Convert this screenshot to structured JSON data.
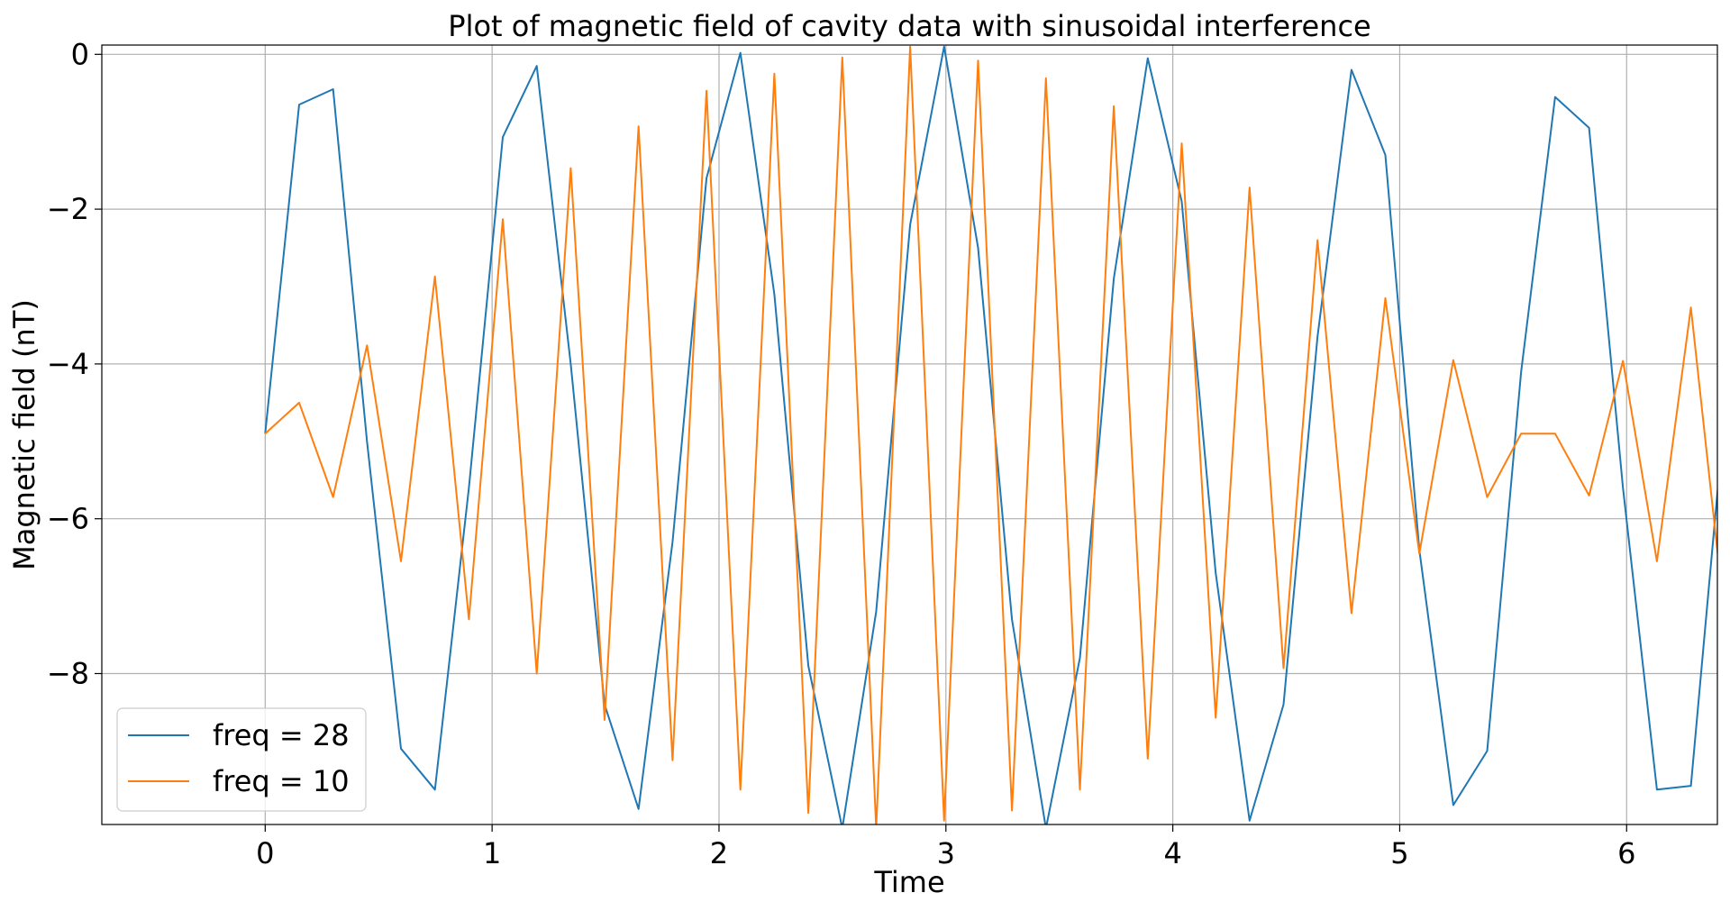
{
  "chart_data": {
    "type": "line",
    "title": "Plot of magnetic field of cavity data with sinusoidal interference",
    "xlabel": "Time",
    "ylabel": "Magnetic field (nT)",
    "xlim": [
      -0.72,
      6.4
    ],
    "ylim": [
      -9.95,
      0.12
    ],
    "grid": true,
    "legend_position": "lower-left",
    "xticks": [
      0,
      1,
      2,
      3,
      4,
      5,
      6
    ],
    "yticks": [
      0,
      -2,
      -4,
      -6,
      -8
    ],
    "xtick_labels": [
      "0",
      "1",
      "2",
      "3",
      "4",
      "5",
      "6"
    ],
    "ytick_labels": [
      "0",
      "−2",
      "−4",
      "−6",
      "−8"
    ],
    "x": [
      0.0,
      0.1496,
      0.2992,
      0.4488,
      0.5984,
      0.748,
      0.8976,
      1.0472,
      1.1968,
      1.3464,
      1.496,
      1.6456,
      1.7952,
      1.9448,
      2.0944,
      2.244,
      2.3936,
      2.5432,
      2.6928,
      2.8424,
      2.992,
      3.1416,
      3.2912,
      3.4408,
      3.5904,
      3.74,
      3.8896,
      4.0392,
      4.1888,
      4.3384,
      4.488,
      4.6376,
      4.7872,
      4.9368,
      5.0864,
      5.236,
      5.3856,
      5.5352,
      5.6848,
      5.8344,
      5.984,
      6.1336,
      6.2832,
      6.4328
    ],
    "series": [
      {
        "name": "freq = 28",
        "color": "#1f77b4",
        "values": [
          -4.9,
          -0.65,
          -0.45,
          -5.0,
          -8.97,
          -9.5,
          -5.6,
          -1.07,
          -0.15,
          -4.0,
          -8.4,
          -9.75,
          -6.3,
          -1.6,
          0.02,
          -3.1,
          -7.9,
          -10.0,
          -7.2,
          -2.2,
          0.1,
          -2.5,
          -7.3,
          -10.0,
          -7.8,
          -2.9,
          -0.05,
          -1.9,
          -6.7,
          -9.9,
          -8.4,
          -3.65,
          -0.2,
          -1.3,
          -6.4,
          -9.7,
          -9.0,
          -4.1,
          -0.55,
          -0.95,
          -5.6,
          -9.5,
          -9.45,
          -4.6
        ]
      },
      {
        "name": "freq = 10",
        "color": "#ff7f0e",
        "values": [
          -4.9,
          -4.5,
          -5.72,
          -3.76,
          -6.55,
          -2.87,
          -7.3,
          -2.13,
          -8.0,
          -1.47,
          -8.6,
          -0.93,
          -9.12,
          -0.47,
          -9.5,
          -0.25,
          -9.8,
          -0.04,
          -10.0,
          0.1,
          -9.9,
          -0.08,
          -9.77,
          -0.31,
          -9.5,
          -0.67,
          -9.1,
          -1.15,
          -8.57,
          -1.72,
          -7.93,
          -2.4,
          -7.22,
          -3.15,
          -6.45,
          -3.95,
          -5.72,
          -4.9,
          -4.9,
          -5.7,
          -3.96,
          -6.55,
          -3.27,
          -7.3
        ]
      }
    ]
  }
}
